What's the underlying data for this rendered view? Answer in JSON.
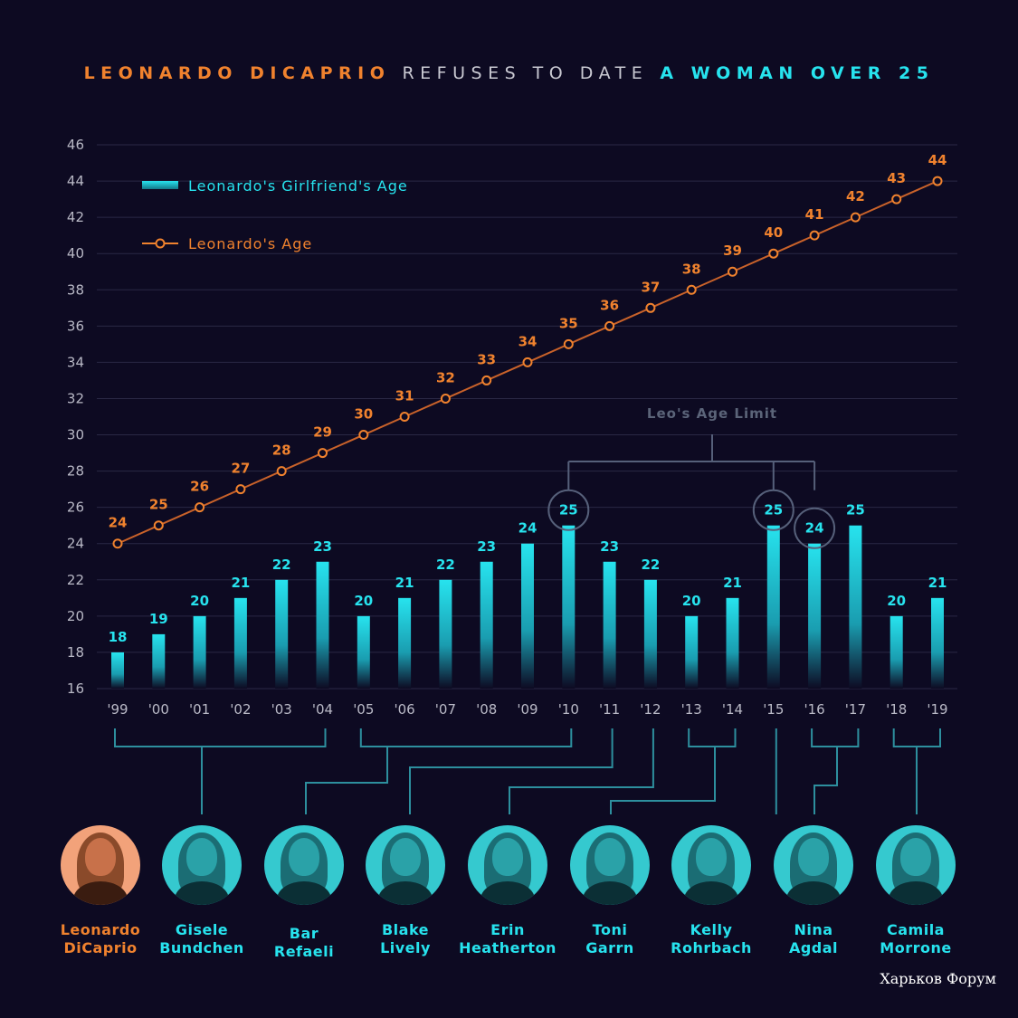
{
  "title": {
    "part1": "LEONARDO DICAPRIO",
    "part2": "REFUSES TO DATE",
    "part3": "A WOMAN OVER 25"
  },
  "colors": {
    "background": "#0d0a22",
    "orange": "#f0822e",
    "cyan": "#27e3ee",
    "grid": "#2a2845",
    "connector": "#2d8f9e",
    "limit": "#5b6479"
  },
  "chart_data": {
    "type": "bar+line",
    "categories": [
      "'99",
      "'00",
      "'01",
      "'02",
      "'03",
      "'04",
      "'05",
      "'06",
      "'07",
      "'08",
      "'09",
      "'10",
      "'11",
      "'12",
      "'13",
      "'14",
      "'15",
      "'16",
      "'17",
      "'18",
      "'19"
    ],
    "ylim": [
      16,
      46
    ],
    "yticks": [
      16,
      18,
      20,
      22,
      24,
      26,
      28,
      30,
      32,
      34,
      36,
      38,
      40,
      42,
      44,
      46
    ],
    "grid": true,
    "legend_position": "top-left",
    "series": [
      {
        "name": "Leonardo's Girlfriend's Age",
        "kind": "bar",
        "color": "#27e3ee",
        "values": [
          18,
          19,
          20,
          21,
          22,
          23,
          20,
          21,
          22,
          23,
          24,
          25,
          23,
          22,
          20,
          21,
          25,
          24,
          25,
          20,
          21
        ]
      },
      {
        "name": "Leonardo's Age",
        "kind": "line",
        "color": "#f0822e",
        "values": [
          24,
          25,
          26,
          27,
          28,
          29,
          30,
          31,
          32,
          33,
          34,
          35,
          36,
          37,
          38,
          39,
          40,
          41,
          42,
          43,
          44
        ]
      }
    ],
    "annotation": {
      "text": "Leo's Age Limit",
      "highlight_indices": [
        11,
        16,
        17
      ]
    }
  },
  "people": [
    {
      "first": "Leonardo",
      "last": "DiCaprio",
      "highlight": true
    },
    {
      "first": "Gisele",
      "last": "Bundchen"
    },
    {
      "first": "Bar",
      "last": "Refaeli"
    },
    {
      "first": "Blake",
      "last": "Lively"
    },
    {
      "first": "Erin",
      "last": "Heatherton"
    },
    {
      "first": "Toni",
      "last": "Garrn"
    },
    {
      "first": "Kelly",
      "last": "Rohrbach"
    },
    {
      "first": "Nina",
      "last": "Agdal"
    },
    {
      "first": "Camila",
      "last": "Morrone"
    }
  ],
  "watermark": "Харьков Форум"
}
